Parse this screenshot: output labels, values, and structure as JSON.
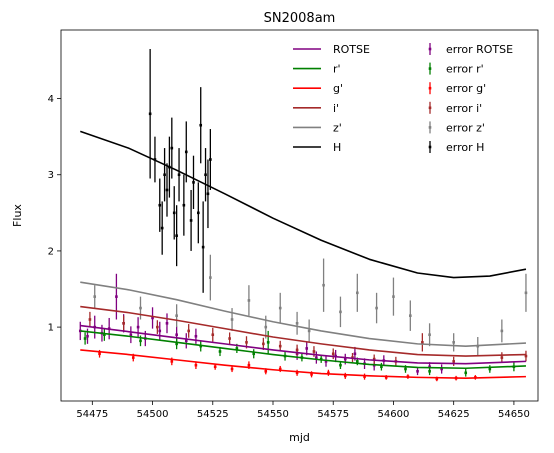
{
  "chart_data": {
    "type": "line",
    "title": "SN2008am",
    "xlabel": "mjd",
    "ylabel": "Flux",
    "xlim": [
      54462,
      54660
    ],
    "ylim": [
      0.03,
      4.9
    ],
    "xticks": [
      "54475",
      "54500",
      "54525",
      "54550",
      "54575",
      "54600",
      "54625",
      "54650"
    ],
    "yticks": [
      "1",
      "2",
      "3",
      "4"
    ],
    "grid": false,
    "legend_position": "top-right",
    "legend_columns": 2,
    "series": [
      {
        "name": "ROTSE",
        "error_name": "error ROTSE",
        "color": "#800080",
        "fit": {
          "x": [
            54470,
            54490,
            54510,
            54530,
            54550,
            54570,
            54590,
            54610,
            54630,
            54655
          ],
          "y": [
            1.02,
            0.94,
            0.86,
            0.78,
            0.7,
            0.63,
            0.57,
            0.53,
            0.52,
            0.55
          ]
        },
        "points": [
          {
            "x": 54470,
            "y": 0.95,
            "e": 0.12
          },
          {
            "x": 54473,
            "y": 0.88,
            "e": 0.1
          },
          {
            "x": 54476,
            "y": 1.0,
            "e": 0.15
          },
          {
            "x": 54479,
            "y": 0.92,
            "e": 0.11
          },
          {
            "x": 54482,
            "y": 0.98,
            "e": 0.14
          },
          {
            "x": 54485,
            "y": 1.4,
            "e": 0.3
          },
          {
            "x": 54488,
            "y": 1.05,
            "e": 0.12
          },
          {
            "x": 54491,
            "y": 0.9,
            "e": 0.11
          },
          {
            "x": 54494,
            "y": 1.0,
            "e": 0.13
          },
          {
            "x": 54497,
            "y": 0.85,
            "e": 0.1
          },
          {
            "x": 54500,
            "y": 1.12,
            "e": 0.14
          },
          {
            "x": 54503,
            "y": 0.95,
            "e": 0.12
          },
          {
            "x": 54506,
            "y": 1.05,
            "e": 0.13
          },
          {
            "x": 54510,
            "y": 0.9,
            "e": 0.11
          },
          {
            "x": 54514,
            "y": 0.82,
            "e": 0.1
          },
          {
            "x": 54518,
            "y": 0.88,
            "e": 0.1
          },
          {
            "x": 54560,
            "y": 0.65,
            "e": 0.08
          },
          {
            "x": 54564,
            "y": 0.72,
            "e": 0.09
          },
          {
            "x": 54568,
            "y": 0.6,
            "e": 0.08
          },
          {
            "x": 54572,
            "y": 0.55,
            "e": 0.07
          },
          {
            "x": 54576,
            "y": 0.62,
            "e": 0.08
          },
          {
            "x": 54580,
            "y": 0.58,
            "e": 0.07
          },
          {
            "x": 54584,
            "y": 0.65,
            "e": 0.09
          },
          {
            "x": 54588,
            "y": 0.52,
            "e": 0.07
          },
          {
            "x": 54592,
            "y": 0.5,
            "e": 0.07
          },
          {
            "x": 54596,
            "y": 0.56,
            "e": 0.07
          },
          {
            "x": 54610,
            "y": 0.42,
            "e": 0.05
          },
          {
            "x": 54615,
            "y": 0.48,
            "e": 0.06
          },
          {
            "x": 54620,
            "y": 0.45,
            "e": 0.06
          }
        ]
      },
      {
        "name": "r'",
        "error_name": "error r'",
        "color": "#008000",
        "fit": {
          "x": [
            54470,
            54490,
            54510,
            54530,
            54550,
            54570,
            54590,
            54610,
            54630,
            54655
          ],
          "y": [
            0.95,
            0.88,
            0.8,
            0.72,
            0.64,
            0.57,
            0.51,
            0.47,
            0.46,
            0.49
          ]
        },
        "points": [
          {
            "x": 54472,
            "y": 0.85,
            "e": 0.08
          },
          {
            "x": 54480,
            "y": 0.9,
            "e": 0.08
          },
          {
            "x": 54495,
            "y": 0.82,
            "e": 0.07
          },
          {
            "x": 54510,
            "y": 0.78,
            "e": 0.07
          },
          {
            "x": 54520,
            "y": 0.75,
            "e": 0.07
          },
          {
            "x": 54528,
            "y": 0.68,
            "e": 0.06
          },
          {
            "x": 54535,
            "y": 0.72,
            "e": 0.06
          },
          {
            "x": 54542,
            "y": 0.65,
            "e": 0.06
          },
          {
            "x": 54548,
            "y": 0.8,
            "e": 0.15
          },
          {
            "x": 54555,
            "y": 0.62,
            "e": 0.06
          },
          {
            "x": 54562,
            "y": 0.6,
            "e": 0.05
          },
          {
            "x": 54570,
            "y": 0.58,
            "e": 0.05
          },
          {
            "x": 54578,
            "y": 0.5,
            "e": 0.05
          },
          {
            "x": 54585,
            "y": 0.55,
            "e": 0.05
          },
          {
            "x": 54595,
            "y": 0.48,
            "e": 0.05
          },
          {
            "x": 54605,
            "y": 0.45,
            "e": 0.05
          },
          {
            "x": 54615,
            "y": 0.42,
            "e": 0.05
          },
          {
            "x": 54630,
            "y": 0.4,
            "e": 0.05
          },
          {
            "x": 54640,
            "y": 0.45,
            "e": 0.05
          },
          {
            "x": 54650,
            "y": 0.48,
            "e": 0.06
          }
        ]
      },
      {
        "name": "g'",
        "error_name": "error g'",
        "color": "#ff0000",
        "fit": {
          "x": [
            54470,
            54490,
            54510,
            54530,
            54550,
            54570,
            54590,
            54610,
            54630,
            54655
          ],
          "y": [
            0.7,
            0.64,
            0.57,
            0.5,
            0.44,
            0.39,
            0.36,
            0.34,
            0.33,
            0.35
          ]
        },
        "points": [
          {
            "x": 54478,
            "y": 0.65,
            "e": 0.05
          },
          {
            "x": 54492,
            "y": 0.6,
            "e": 0.05
          },
          {
            "x": 54508,
            "y": 0.55,
            "e": 0.05
          },
          {
            "x": 54518,
            "y": 0.5,
            "e": 0.05
          },
          {
            "x": 54526,
            "y": 0.48,
            "e": 0.04
          },
          {
            "x": 54533,
            "y": 0.45,
            "e": 0.04
          },
          {
            "x": 54540,
            "y": 0.5,
            "e": 0.05
          },
          {
            "x": 54547,
            "y": 0.42,
            "e": 0.04
          },
          {
            "x": 54553,
            "y": 0.45,
            "e": 0.04
          },
          {
            "x": 54560,
            "y": 0.4,
            "e": 0.04
          },
          {
            "x": 54566,
            "y": 0.38,
            "e": 0.04
          },
          {
            "x": 54573,
            "y": 0.4,
            "e": 0.04
          },
          {
            "x": 54580,
            "y": 0.36,
            "e": 0.04
          },
          {
            "x": 54588,
            "y": 0.35,
            "e": 0.04
          },
          {
            "x": 54597,
            "y": 0.34,
            "e": 0.03
          },
          {
            "x": 54606,
            "y": 0.35,
            "e": 0.03
          },
          {
            "x": 54618,
            "y": 0.32,
            "e": 0.03
          },
          {
            "x": 54626,
            "y": 0.33,
            "e": 0.03
          },
          {
            "x": 54634,
            "y": 0.34,
            "e": 0.03
          }
        ]
      },
      {
        "name": "i'",
        "error_name": "error i'",
        "color": "#a52a2a",
        "fit": {
          "x": [
            54470,
            54490,
            54510,
            54530,
            54550,
            54570,
            54590,
            54610,
            54630,
            54655
          ],
          "y": [
            1.27,
            1.19,
            1.09,
            0.98,
            0.87,
            0.78,
            0.7,
            0.64,
            0.62,
            0.64
          ]
        },
        "points": [
          {
            "x": 54474,
            "y": 1.1,
            "e": 0.1
          },
          {
            "x": 54488,
            "y": 1.05,
            "e": 0.1
          },
          {
            "x": 54502,
            "y": 1.0,
            "e": 0.09
          },
          {
            "x": 54515,
            "y": 0.95,
            "e": 0.09
          },
          {
            "x": 54525,
            "y": 0.9,
            "e": 0.09
          },
          {
            "x": 54532,
            "y": 0.85,
            "e": 0.08
          },
          {
            "x": 54539,
            "y": 0.8,
            "e": 0.08
          },
          {
            "x": 54546,
            "y": 0.78,
            "e": 0.08
          },
          {
            "x": 54553,
            "y": 0.75,
            "e": 0.07
          },
          {
            "x": 54560,
            "y": 0.7,
            "e": 0.07
          },
          {
            "x": 54567,
            "y": 0.68,
            "e": 0.07
          },
          {
            "x": 54575,
            "y": 0.65,
            "e": 0.07
          },
          {
            "x": 54583,
            "y": 0.6,
            "e": 0.06
          },
          {
            "x": 54592,
            "y": 0.58,
            "e": 0.06
          },
          {
            "x": 54601,
            "y": 0.55,
            "e": 0.06
          },
          {
            "x": 54612,
            "y": 0.8,
            "e": 0.12
          },
          {
            "x": 54625,
            "y": 0.55,
            "e": 0.06
          },
          {
            "x": 54645,
            "y": 0.6,
            "e": 0.07
          },
          {
            "x": 54655,
            "y": 0.62,
            "e": 0.07
          }
        ]
      },
      {
        "name": "z'",
        "error_name": "error z'",
        "color": "#808080",
        "fit": {
          "x": [
            54470,
            54490,
            54510,
            54530,
            54550,
            54570,
            54590,
            54610,
            54630,
            54655
          ],
          "y": [
            1.59,
            1.49,
            1.36,
            1.21,
            1.07,
            0.95,
            0.85,
            0.78,
            0.75,
            0.79
          ]
        },
        "points": [
          {
            "x": 54476,
            "y": 1.4,
            "e": 0.15
          },
          {
            "x": 54495,
            "y": 1.25,
            "e": 0.15
          },
          {
            "x": 54510,
            "y": 1.15,
            "e": 0.15
          },
          {
            "x": 54524,
            "y": 1.65,
            "e": 0.3
          },
          {
            "x": 54533,
            "y": 1.1,
            "e": 0.15
          },
          {
            "x": 54540,
            "y": 1.35,
            "e": 0.2
          },
          {
            "x": 54547,
            "y": 1.0,
            "e": 0.15
          },
          {
            "x": 54553,
            "y": 1.25,
            "e": 0.2
          },
          {
            "x": 54560,
            "y": 1.05,
            "e": 0.15
          },
          {
            "x": 54565,
            "y": 0.95,
            "e": 0.15
          },
          {
            "x": 54571,
            "y": 1.55,
            "e": 0.35
          },
          {
            "x": 54578,
            "y": 1.2,
            "e": 0.2
          },
          {
            "x": 54585,
            "y": 1.45,
            "e": 0.25
          },
          {
            "x": 54593,
            "y": 1.25,
            "e": 0.2
          },
          {
            "x": 54600,
            "y": 1.4,
            "e": 0.25
          },
          {
            "x": 54607,
            "y": 1.15,
            "e": 0.2
          },
          {
            "x": 54615,
            "y": 0.9,
            "e": 0.15
          },
          {
            "x": 54625,
            "y": 0.8,
            "e": 0.12
          },
          {
            "x": 54635,
            "y": 0.75,
            "e": 0.12
          },
          {
            "x": 54645,
            "y": 0.95,
            "e": 0.15
          },
          {
            "x": 54655,
            "y": 1.45,
            "e": 0.25
          }
        ]
      },
      {
        "name": "H",
        "error_name": "error H",
        "color": "#000000",
        "fit": {
          "x": [
            54470,
            54490,
            54510,
            54530,
            54550,
            54570,
            54590,
            54610,
            54625,
            54640,
            54655
          ],
          "y": [
            3.57,
            3.35,
            3.06,
            2.75,
            2.43,
            2.14,
            1.89,
            1.71,
            1.65,
            1.67,
            1.76
          ]
        },
        "points": [
          {
            "x": 54499,
            "y": 3.8,
            "e": 0.85
          },
          {
            "x": 54501,
            "y": 3.2,
            "e": 0.3
          },
          {
            "x": 54503,
            "y": 2.6,
            "e": 0.35
          },
          {
            "x": 54504,
            "y": 2.3,
            "e": 0.35
          },
          {
            "x": 54505,
            "y": 3.0,
            "e": 0.35
          },
          {
            "x": 54506,
            "y": 2.8,
            "e": 0.35
          },
          {
            "x": 54507,
            "y": 3.1,
            "e": 0.4
          },
          {
            "x": 54508,
            "y": 3.35,
            "e": 0.4
          },
          {
            "x": 54509,
            "y": 2.5,
            "e": 0.35
          },
          {
            "x": 54510,
            "y": 2.2,
            "e": 0.4
          },
          {
            "x": 54511,
            "y": 3.0,
            "e": 0.35
          },
          {
            "x": 54513,
            "y": 2.6,
            "e": 0.4
          },
          {
            "x": 54514,
            "y": 3.3,
            "e": 0.4
          },
          {
            "x": 54516,
            "y": 2.4,
            "e": 0.4
          },
          {
            "x": 54517,
            "y": 2.9,
            "e": 0.35
          },
          {
            "x": 54519,
            "y": 2.5,
            "e": 0.4
          },
          {
            "x": 54520,
            "y": 3.65,
            "e": 0.5
          },
          {
            "x": 54521,
            "y": 2.05,
            "e": 0.6
          },
          {
            "x": 54522,
            "y": 3.0,
            "e": 0.35
          },
          {
            "x": 54523,
            "y": 2.75,
            "e": 0.45
          },
          {
            "x": 54524,
            "y": 3.2,
            "e": 0.4
          }
        ]
      }
    ]
  }
}
